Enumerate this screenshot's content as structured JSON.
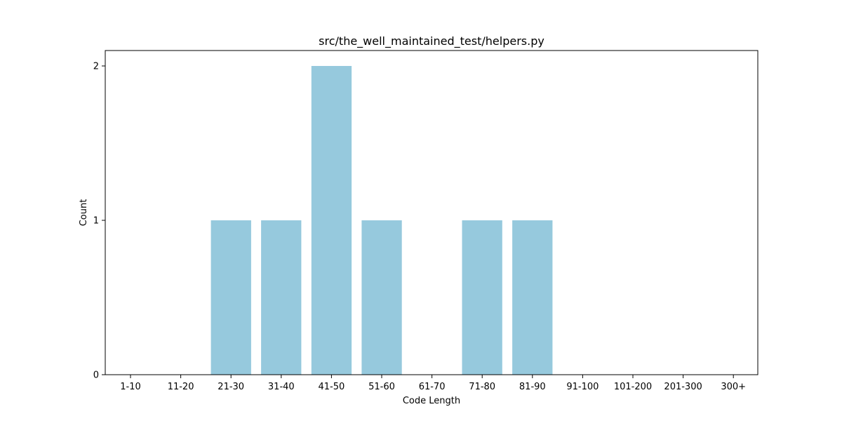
{
  "chart_data": {
    "type": "bar",
    "title": "src/the_well_maintained_test/helpers.py",
    "xlabel": "Code Length",
    "ylabel": "Count",
    "categories": [
      "1-10",
      "11-20",
      "21-30",
      "31-40",
      "41-50",
      "51-60",
      "61-70",
      "71-80",
      "81-90",
      "91-100",
      "101-200",
      "201-300",
      "300+"
    ],
    "values": [
      0,
      0,
      1,
      1,
      2,
      1,
      0,
      1,
      1,
      0,
      0,
      0,
      0
    ],
    "ylim": [
      0,
      2.1
    ],
    "yticks": [
      "0",
      "1",
      "2"
    ],
    "bar_color": "#96c9dd",
    "grid": false,
    "legend": "none"
  }
}
